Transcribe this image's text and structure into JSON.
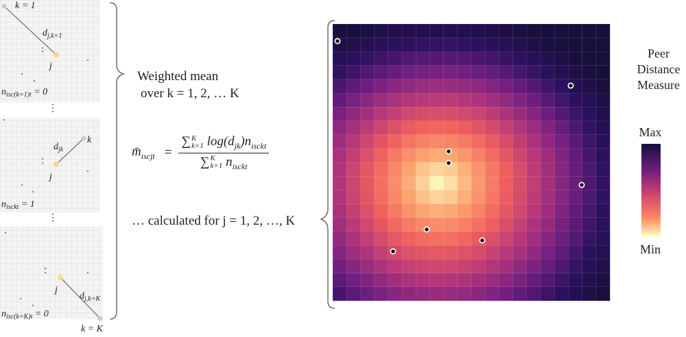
{
  "left_labels": [
    {
      "main": "k = 1"
    },
    {
      "main": "d",
      "sub": "j,k=1"
    },
    {
      "main": "j"
    },
    {
      "main": "n",
      "sub": "isc(k=1)t",
      "tail": " = 0"
    },
    {
      "main": "d",
      "sub": "jk"
    },
    {
      "main": "k"
    },
    {
      "main": "j"
    },
    {
      "main": "n",
      "sub": "isckt",
      "tail": " = 1"
    },
    {
      "main": "j"
    },
    {
      "main": "d",
      "sub": "j,k=K"
    },
    {
      "main": "n",
      "sub": "isc(k=K)t",
      "tail": " = 0"
    },
    {
      "main": "k = K"
    }
  ],
  "weighted": [
    "Weighted mean",
    "over k = 1, 2, … K"
  ],
  "formula": {
    "lhs": {
      "main": "m̄",
      "sub": "iscjt"
    },
    "eq": "=",
    "num": [
      {
        "main": "∑",
        "sup": "K",
        "sub": "k=1"
      },
      {
        "main": " log(d",
        "sub": "jk"
      },
      {
        "main": ")n",
        "sub": "isckt"
      }
    ],
    "den": [
      {
        "main": "∑",
        "sup": "K",
        "sub": "k=1"
      },
      {
        "main": " n",
        "sub": "isckt"
      }
    ]
  },
  "calculated": "… calculated for j = 1, 2, …, K",
  "legend": {
    "title": [
      "Peer",
      "Distance",
      "Measure"
    ],
    "max": "Max",
    "min": "Min"
  }
}
